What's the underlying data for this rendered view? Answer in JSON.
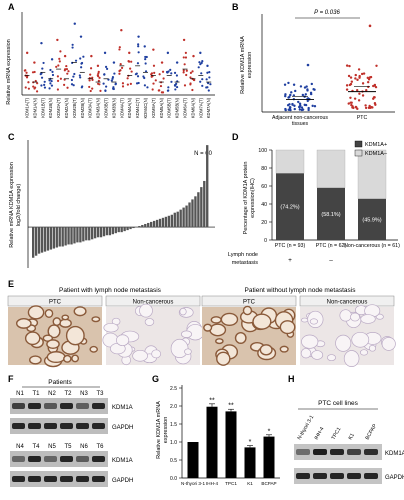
{
  "panels": {
    "A": {
      "letter": "A",
      "ylabel": "Relative mRNA expression"
    },
    "B": {
      "letter": "B",
      "ylabel": "Relative KDM1A mRNA expression",
      "pvalue": "P = 0.036"
    },
    "C": {
      "letter": "C",
      "ylabel": "Relative mRNA KDM1A expression log2(fold change)",
      "n_label": "N = 60"
    },
    "D": {
      "letter": "D",
      "ylabel": "Percentage of KDM1A protein expression(IHC)",
      "xtitle": "Lymph node metastasis"
    },
    "E": {
      "letter": "E",
      "left_title": "Patient with lymph node metastasis",
      "right_title": "Patient without lymph node metastasis",
      "tab_ptc": "PTC",
      "tab_non": "Non-cancerous"
    },
    "F": {
      "letter": "F",
      "title": "Patients",
      "row1": [
        "N1",
        "T1",
        "N2",
        "T2",
        "N3",
        "T3"
      ],
      "row2": [
        "N4",
        "T4",
        "N5",
        "T5",
        "N6",
        "T6"
      ],
      "protein1": "KDM1A",
      "protein2": "GAPDH"
    },
    "G": {
      "letter": "G",
      "ylabel": "Relative KDM1A mRNA expression"
    },
    "H": {
      "letter": "H",
      "title": "PTC cell lines",
      "lanes": [
        "N-thyori 3-1",
        "IHH-4",
        "TPC1",
        "K1",
        "BCPAP"
      ],
      "protein1": "KDM1A",
      "protein2": "GAPDH"
    }
  },
  "colors": {
    "blue": "#1f3fa0",
    "red": "#c0302a",
    "dark": "#444444",
    "light": "#d9d9d9",
    "bar": "#555555",
    "tissue_bg": "#e8dcd0",
    "tissue_stain": "#8a5a3a"
  },
  "chart_data": [
    {
      "id": "A",
      "type": "scatter",
      "ylabel": "Relative mRNA expression",
      "categories": [
        "KDM1A(T)",
        "KDM1A(N)",
        "KDM1B(T)",
        "KDM1B(N)",
        "KDM2A(T)",
        "KDM2A(N)",
        "KDM2B(T)",
        "KDM2B(N)",
        "KDM3A(T)",
        "KDM3A(N)",
        "KDM3B(T)",
        "KDM3B(N)",
        "KDM4A(T)",
        "KDM4A(N)",
        "KDM4C(T)",
        "KDM4C(N)",
        "KDM5A(T)",
        "KDM5A(N)",
        "KDM5B(T)",
        "KDM5B(N)",
        "KDM6A(T)",
        "KDM6A(N)",
        "KDM7A(T)",
        "KDM7A(N)"
      ],
      "means": [
        0.06,
        0.04,
        0.07,
        0.05,
        0.08,
        0.05,
        0.1,
        0.07,
        0.05,
        0.04,
        0.05,
        0.04,
        0.09,
        0.06,
        0.09,
        0.07,
        0.06,
        0.04,
        0.06,
        0.04,
        0.08,
        0.05,
        0.06,
        0.04
      ],
      "maxima": [
        0.13,
        0.1,
        0.16,
        0.11,
        0.17,
        0.12,
        0.22,
        0.18,
        0.12,
        0.09,
        0.13,
        0.1,
        0.2,
        0.13,
        0.18,
        0.15,
        0.14,
        0.1,
        0.13,
        0.1,
        0.17,
        0.12,
        0.13,
        0.09
      ],
      "ylim": [
        0,
        0.25
      ]
    },
    {
      "id": "B",
      "type": "scatter",
      "categories": [
        "Adjacent non-cancerous tissues",
        "PTC"
      ],
      "means": [
        0.08,
        0.13
      ],
      "maxima": [
        0.3,
        0.55
      ],
      "ylim": [
        0,
        0.6
      ],
      "pvalue": "P = 0.036"
    },
    {
      "id": "C",
      "type": "bar",
      "n": 60,
      "values": [
        -3.0,
        -2.8,
        -2.6,
        -2.5,
        -2.4,
        -2.3,
        -2.2,
        -2.1,
        -2.0,
        -1.9,
        -1.9,
        -1.8,
        -1.7,
        -1.7,
        -1.6,
        -1.5,
        -1.5,
        -1.4,
        -1.3,
        -1.3,
        -1.2,
        -1.1,
        -1.0,
        -1.0,
        -0.9,
        -0.8,
        -0.8,
        -0.7,
        -0.6,
        -0.5,
        -0.5,
        -0.4,
        -0.3,
        -0.2,
        -0.1,
        0.0,
        0.1,
        0.2,
        0.3,
        0.4,
        0.5,
        0.6,
        0.7,
        0.8,
        0.9,
        1.0,
        1.1,
        1.2,
        1.4,
        1.5,
        1.7,
        1.9,
        2.1,
        2.4,
        2.7,
        3.0,
        3.4,
        3.9,
        4.5,
        8.0
      ],
      "ylim": [
        -4,
        8.5
      ]
    },
    {
      "id": "D",
      "type": "bar",
      "stacked": true,
      "categories": [
        "PTC (n = 93)",
        "PTC (n = 62)",
        "Non-cancerous (n = 61)"
      ],
      "ln_status": [
        "+",
        "–",
        ""
      ],
      "series": [
        {
          "name": "KDM1A+",
          "values": [
            74.2,
            58.1,
            45.9
          ]
        },
        {
          "name": "KDM1A–",
          "values": [
            25.8,
            41.9,
            54.1
          ]
        }
      ],
      "labels": [
        "(74.2%)",
        "(58.1%)",
        "(45.9%)"
      ],
      "ylim": [
        0,
        100
      ],
      "yticks": [
        "0",
        "20",
        "40",
        "60",
        "80",
        "100"
      ]
    },
    {
      "id": "G",
      "type": "bar",
      "categories": [
        "N-thyori 3-1",
        "IHH-4",
        "TPC1",
        "K1",
        "BCPAP"
      ],
      "values": [
        1.0,
        1.98,
        1.85,
        0.85,
        1.15
      ],
      "errors": [
        0.0,
        0.08,
        0.06,
        0.05,
        0.05
      ],
      "significance": [
        "",
        "**",
        "**",
        "*",
        "*"
      ],
      "ylim": [
        0,
        2.5
      ],
      "yticks": [
        "0.0",
        "0.5",
        "1.0",
        "1.5",
        "2.0",
        "2.5"
      ]
    }
  ]
}
